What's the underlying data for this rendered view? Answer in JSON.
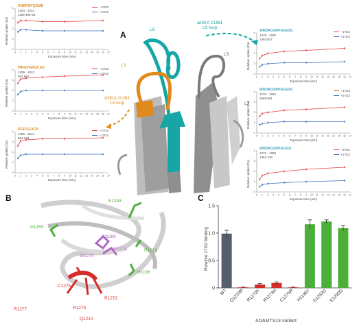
{
  "panels": {
    "a": "A",
    "b": "B",
    "c": "C"
  },
  "uptake_plots": [
    {
      "seq": "KNRPGFQCMD",
      "range": "1203 - 1212",
      "mz": "1169.499 Da",
      "color_class": "orange",
      "red": [
        2.6,
        2.8,
        2.8,
        2.7,
        2.7,
        2.8
      ],
      "blue": [
        1.7,
        1.9,
        1.9,
        1.8,
        1.8,
        1.8
      ]
    },
    {
      "seq": "WRGPGRQCAD",
      "range": "1305 - 1313",
      "mz": "934.997",
      "color_class": "orange",
      "red": [
        2.7,
        3.1,
        3.2,
        3.3,
        3.4,
        3.5
      ],
      "blue": [
        1.6,
        1.9,
        2.0,
        2.0,
        2.0,
        2.0
      ]
    },
    {
      "seq": "RGPGGACA",
      "range": "1206 - 1214",
      "mz": "654.344",
      "color_class": "orange",
      "red": [
        2.6,
        3.1,
        3.2,
        3.3,
        3.3,
        3.4
      ],
      "blue": [
        1.4,
        1.7,
        1.8,
        1.8,
        1.8,
        1.8
      ]
    },
    {
      "seq": "WRDRGSRPGGGDL",
      "range": "1270 - 1283",
      "mz": "1453.817",
      "color_class": "teal",
      "red": [
        1.5,
        1.8,
        2.0,
        2.2,
        2.3,
        2.5
      ],
      "blue": [
        0.7,
        0.9,
        1.0,
        1.1,
        1.1,
        1.2
      ]
    },
    {
      "seq": "WRDRGSRPGGGDL",
      "range": "1270 - 1284",
      "mz": "1568.901",
      "color_class": "teal",
      "red": [
        1.6,
        1.9,
        2.0,
        2.2,
        2.3,
        2.5
      ],
      "blue": [
        0.8,
        0.9,
        1.0,
        1.1,
        1.1,
        1.1
      ]
    },
    {
      "seq": "WRDRGSRPGGGD",
      "range": "1271 - 1283",
      "mz": "1354.748",
      "color_class": "teal",
      "red": [
        1.2,
        1.6,
        1.8,
        2.0,
        2.2,
        2.4
      ],
      "blue": [
        0.5,
        0.7,
        0.8,
        0.9,
        1.0,
        1.1
      ]
    }
  ],
  "uptake_common": {
    "ylabel": "Relative uptake (Da)",
    "xlabel": "Exposure time (min)",
    "xticks": [
      "0",
      "1",
      "2",
      "3",
      "4",
      "5",
      "6",
      "7",
      "8",
      "9",
      "10",
      "11",
      "12",
      "13",
      "14",
      "15",
      "16",
      "17"
    ],
    "legend_red": "−17G2",
    "legend_blue": "+17G2",
    "times": [
      0.5,
      1,
      2,
      5,
      9,
      16
    ]
  },
  "structure_labels": {
    "l9": "L9",
    "l3": "L3",
    "l5": "L5",
    "l7": "L7",
    "hdx_l9": "ΔHDX CUB1\nL9 loop",
    "hdx_l3": "ΔHDX CUB1\nL3 loop"
  },
  "residue_labels": {
    "e1293": "E1293",
    "d1259": "D1259",
    "r1219": "R1219",
    "h1196": "H1196",
    "w1269": "W1269",
    "w1270": "W1270",
    "w1274": "W1274",
    "c1275": "C1275",
    "r1272": "R1272",
    "r1277": "R1277",
    "r1274": "R1274",
    "q1210": "Q1210"
  },
  "colors": {
    "orange": "#e08a1e",
    "teal": "#1aa7a8",
    "red": "#d62b2b",
    "green": "#4caf3a",
    "purple": "#b369c4",
    "grey": "#555e6b",
    "blue_series": "#3b6fbf",
    "red_series": "#e23c3c"
  },
  "chart_data": {
    "type": "bar",
    "title": "",
    "xlabel": "ADAMTS13 variant",
    "ylabel": "Relative 17G2 binding",
    "ylim": [
      0,
      1.5
    ],
    "yticks": [
      "0",
      "0.5",
      "1.0",
      "1.5"
    ],
    "categories": [
      "WT",
      "Q1210R",
      "R1272K",
      "R1274H",
      "C1275R",
      "H1196Y",
      "D1259G",
      "E1293G"
    ],
    "values": [
      0.99,
      0.01,
      0.06,
      0.09,
      0.01,
      1.16,
      1.21,
      1.09
    ],
    "errors": [
      0.06,
      0.005,
      0.02,
      0.02,
      0.005,
      0.08,
      0.03,
      0.05
    ],
    "bar_colors": [
      "#555e6b",
      "#d62b2b",
      "#d62b2b",
      "#d62b2b",
      "#d62b2b",
      "#4caf3a",
      "#4caf3a",
      "#4caf3a"
    ]
  }
}
